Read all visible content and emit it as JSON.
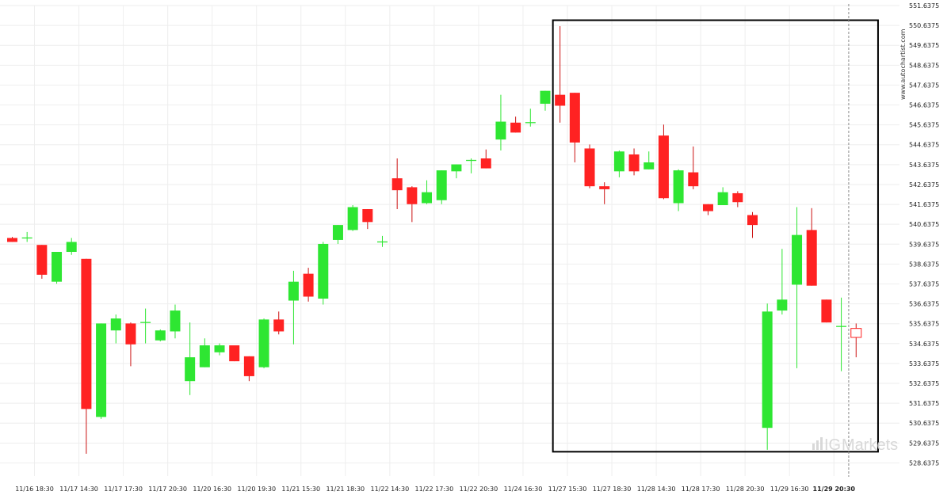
{
  "watermark": "www.autochartist.com",
  "brand": {
    "ig": "IG",
    "markets": "Markets"
  },
  "colors": {
    "up": "#2ee632",
    "down": "#ff2222",
    "wick_up": "#2ee632",
    "wick_down": "#cc1111",
    "box": "#000000"
  },
  "chart_data": {
    "type": "candlestick",
    "title": "",
    "xlabel": "",
    "ylabel": "",
    "ylim": [
      528.1375,
      551.6375
    ],
    "y_ticks": [
      "551.6375",
      "550.6375",
      "549.6375",
      "548.6375",
      "547.6375",
      "546.6375",
      "545.6375",
      "544.6375",
      "543.6375",
      "542.6375",
      "541.6375",
      "540.6375",
      "539.6375",
      "538.6375",
      "537.6375",
      "536.6375",
      "535.6375",
      "534.6375",
      "533.6375",
      "532.6375",
      "531.6375",
      "530.6375",
      "529.6375",
      "528.6375"
    ],
    "x_tick_labels": [
      {
        "label": "11/16 18:30",
        "index": 1.5,
        "bold": false
      },
      {
        "label": "11/17 14:30",
        "index": 4.5,
        "bold": false
      },
      {
        "label": "11/17 17:30",
        "index": 7.5,
        "bold": false
      },
      {
        "label": "11/17 20:30",
        "index": 10.5,
        "bold": false
      },
      {
        "label": "11/20 16:30",
        "index": 13.5,
        "bold": false
      },
      {
        "label": "11/20 19:30",
        "index": 16.5,
        "bold": false
      },
      {
        "label": "11/21 15:30",
        "index": 19.5,
        "bold": false
      },
      {
        "label": "11/21 18:30",
        "index": 22.5,
        "bold": false
      },
      {
        "label": "11/22 14:30",
        "index": 25.5,
        "bold": false
      },
      {
        "label": "11/22 17:30",
        "index": 28.5,
        "bold": false
      },
      {
        "label": "11/22 20:30",
        "index": 31.5,
        "bold": false
      },
      {
        "label": "11/24 16:30",
        "index": 34.5,
        "bold": false
      },
      {
        "label": "11/27 15:30",
        "index": 37.5,
        "bold": false
      },
      {
        "label": "11/27 18:30",
        "index": 40.5,
        "bold": false
      },
      {
        "label": "11/28 14:30",
        "index": 43.5,
        "bold": false
      },
      {
        "label": "11/28 17:30",
        "index": 46.5,
        "bold": false
      },
      {
        "label": "11/28 20:30",
        "index": 49.5,
        "bold": false
      },
      {
        "label": "11/29 16:30",
        "index": 52.5,
        "bold": false
      },
      {
        "label": "11/29 20:30",
        "index": 55.5,
        "bold": true
      }
    ],
    "candles": [
      {
        "o": 539.95,
        "h": 540.0,
        "l": 539.75,
        "c": 539.75
      },
      {
        "o": 539.95,
        "h": 540.25,
        "l": 539.75,
        "c": 539.95
      },
      {
        "o": 539.6,
        "h": 539.6,
        "l": 537.9,
        "c": 538.1
      },
      {
        "o": 537.75,
        "h": 539.25,
        "l": 537.65,
        "c": 539.25
      },
      {
        "o": 539.25,
        "h": 539.95,
        "l": 539.1,
        "c": 539.75
      },
      {
        "o": 538.9,
        "h": 538.9,
        "l": 529.1,
        "c": 531.35
      },
      {
        "o": 530.95,
        "h": 535.65,
        "l": 530.85,
        "c": 535.65
      },
      {
        "o": 535.3,
        "h": 536.1,
        "l": 534.65,
        "c": 535.9
      },
      {
        "o": 535.65,
        "h": 535.7,
        "l": 533.5,
        "c": 534.6
      },
      {
        "o": 535.7,
        "h": 536.4,
        "l": 534.65,
        "c": 535.7
      },
      {
        "o": 534.8,
        "h": 535.35,
        "l": 534.75,
        "c": 535.3
      },
      {
        "o": 535.25,
        "h": 536.6,
        "l": 534.9,
        "c": 536.3
      },
      {
        "o": 532.75,
        "h": 535.7,
        "l": 532.05,
        "c": 533.95
      },
      {
        "o": 533.45,
        "h": 534.9,
        "l": 533.45,
        "c": 534.55
      },
      {
        "o": 534.2,
        "h": 534.65,
        "l": 534.05,
        "c": 534.55
      },
      {
        "o": 534.55,
        "h": 534.55,
        "l": 533.75,
        "c": 533.75
      },
      {
        "o": 534.0,
        "h": 534.0,
        "l": 532.75,
        "c": 533.0
      },
      {
        "o": 533.45,
        "h": 535.9,
        "l": 533.4,
        "c": 535.85
      },
      {
        "o": 535.85,
        "h": 536.25,
        "l": 535.1,
        "c": 535.25
      },
      {
        "o": 536.8,
        "h": 538.3,
        "l": 534.6,
        "c": 537.75
      },
      {
        "o": 538.15,
        "h": 538.45,
        "l": 536.75,
        "c": 537.0
      },
      {
        "o": 536.9,
        "h": 539.75,
        "l": 536.6,
        "c": 539.65
      },
      {
        "o": 539.85,
        "h": 540.55,
        "l": 539.65,
        "c": 540.6
      },
      {
        "o": 540.35,
        "h": 541.6,
        "l": 540.3,
        "c": 541.5
      },
      {
        "o": 541.4,
        "h": 541.35,
        "l": 540.4,
        "c": 540.75
      },
      {
        "o": 539.75,
        "h": 540.05,
        "l": 539.5,
        "c": 539.75
      },
      {
        "o": 542.95,
        "h": 543.95,
        "l": 541.4,
        "c": 542.35
      },
      {
        "o": 542.5,
        "h": 542.55,
        "l": 540.75,
        "c": 541.65
      },
      {
        "o": 541.7,
        "h": 542.85,
        "l": 541.65,
        "c": 542.25
      },
      {
        "o": 541.85,
        "h": 543.35,
        "l": 541.65,
        "c": 543.35
      },
      {
        "o": 543.3,
        "h": 543.55,
        "l": 542.95,
        "c": 543.65
      },
      {
        "o": 543.85,
        "h": 543.95,
        "l": 543.2,
        "c": 543.85
      },
      {
        "o": 543.95,
        "h": 544.4,
        "l": 543.6,
        "c": 543.45
      },
      {
        "o": 544.9,
        "h": 547.15,
        "l": 544.35,
        "c": 545.8
      },
      {
        "o": 545.75,
        "h": 546.05,
        "l": 545.3,
        "c": 545.25
      },
      {
        "o": 545.75,
        "h": 546.45,
        "l": 545.55,
        "c": 545.75
      },
      {
        "o": 546.7,
        "h": 547.15,
        "l": 546.35,
        "c": 547.35
      },
      {
        "o": 547.15,
        "h": 550.6,
        "l": 545.75,
        "c": 546.6
      },
      {
        "o": 547.25,
        "h": 547.25,
        "l": 543.75,
        "c": 544.75
      },
      {
        "o": 544.45,
        "h": 544.65,
        "l": 542.45,
        "c": 542.55
      },
      {
        "o": 542.55,
        "h": 542.75,
        "l": 541.65,
        "c": 542.4
      },
      {
        "o": 543.3,
        "h": 544.35,
        "l": 543.0,
        "c": 544.3
      },
      {
        "o": 544.15,
        "h": 544.45,
        "l": 543.1,
        "c": 543.3
      },
      {
        "o": 543.4,
        "h": 544.3,
        "l": 543.45,
        "c": 543.75
      },
      {
        "o": 545.1,
        "h": 545.65,
        "l": 541.9,
        "c": 541.95
      },
      {
        "o": 541.7,
        "h": 543.4,
        "l": 541.3,
        "c": 543.35
      },
      {
        "o": 543.25,
        "h": 544.55,
        "l": 542.4,
        "c": 542.55
      },
      {
        "o": 541.65,
        "h": 541.65,
        "l": 541.1,
        "c": 541.3
      },
      {
        "o": 541.6,
        "h": 542.5,
        "l": 541.6,
        "c": 542.25
      },
      {
        "o": 542.2,
        "h": 542.3,
        "l": 541.5,
        "c": 541.75
      },
      {
        "o": 541.1,
        "h": 541.25,
        "l": 539.95,
        "c": 540.6
      },
      {
        "o": 530.4,
        "h": 536.65,
        "l": 529.3,
        "c": 536.25
      },
      {
        "o": 536.3,
        "h": 539.4,
        "l": 536.1,
        "c": 536.85
      },
      {
        "o": 537.6,
        "h": 541.5,
        "l": 533.4,
        "c": 540.1
      },
      {
        "o": 540.35,
        "h": 541.45,
        "l": 537.55,
        "c": 537.55
      },
      {
        "o": 536.85,
        "h": 536.85,
        "l": 535.7,
        "c": 535.7
      },
      {
        "o": 535.5,
        "h": 536.95,
        "l": 533.25,
        "c": 535.5
      },
      {
        "o": 535.4,
        "h": 535.65,
        "l": 533.95,
        "c": 534.95
      }
    ],
    "open_last_candle_index": 57,
    "pattern_box": {
      "start_index": 37,
      "end_index": 58,
      "top": 550.9,
      "bottom": 529.2
    },
    "current_time_index": 56.5
  }
}
